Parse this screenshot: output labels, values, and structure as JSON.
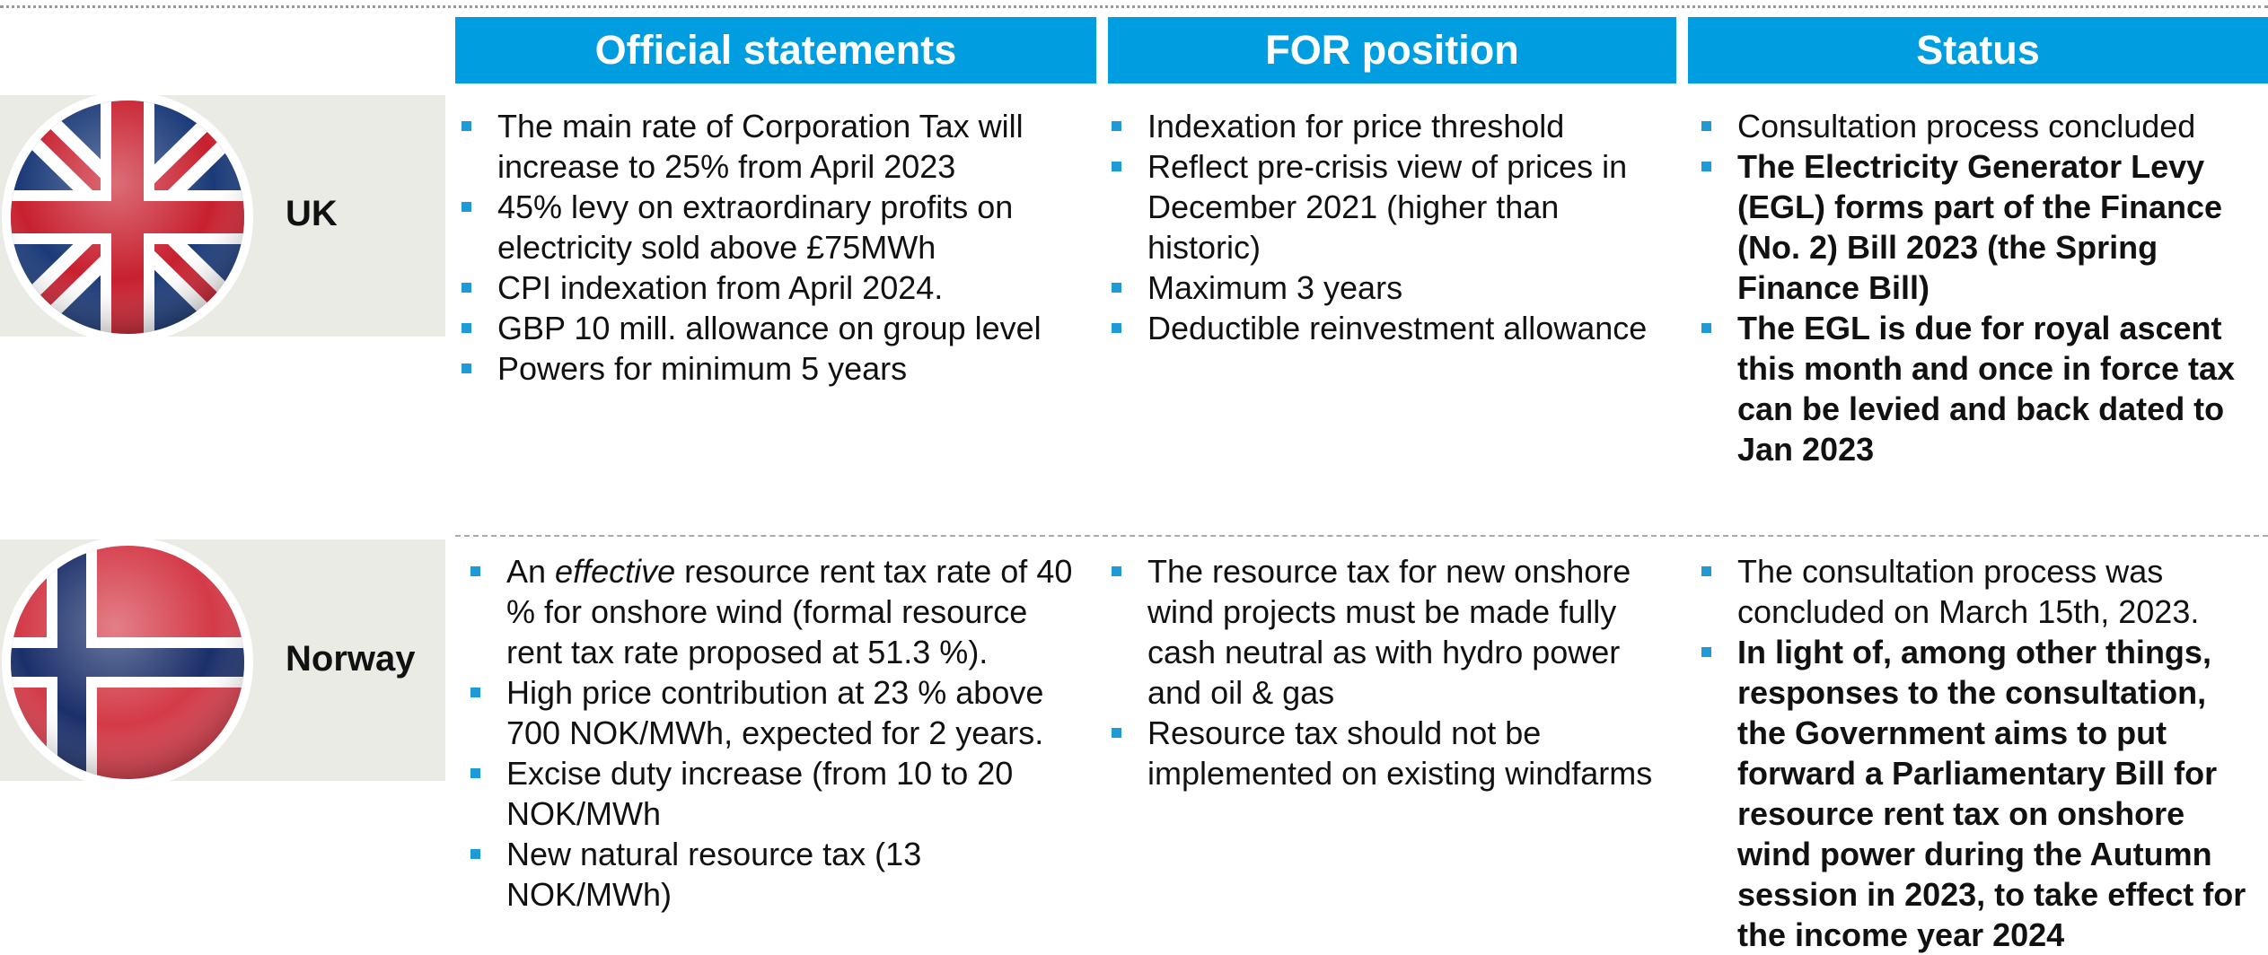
{
  "headers": [
    "Official statements",
    "FOR position",
    "Status"
  ],
  "rows": [
    {
      "country": "UK",
      "official": [
        [
          {
            "text": "The main rate of Corporation Tax will increase to 25% from April 2023"
          }
        ],
        [
          {
            "text": "45% levy on extraordinary profits on electricity sold above £75MWh"
          }
        ],
        [
          {
            "text": "CPI indexation from April 2024."
          }
        ],
        [
          {
            "text": "GBP 10 mill. allowance on group level"
          }
        ],
        [
          {
            "text": "Powers for minimum 5 years"
          }
        ]
      ],
      "for": [
        [
          {
            "text": "Indexation for price threshold"
          }
        ],
        [
          {
            "text": "Reflect pre-crisis view of prices in December 2021 (higher than historic)"
          }
        ],
        [
          {
            "text": "Maximum 3 years"
          }
        ],
        [
          {
            "text": "Deductible reinvestment allowance"
          }
        ]
      ],
      "status": [
        [
          {
            "text": "Consultation process concluded"
          }
        ],
        [
          {
            "text": "The Electricity Generator Levy (EGL) forms part of the Finance (No. 2) Bill 2023 (the Spring Finance Bill)",
            "bold": true
          }
        ],
        [
          {
            "text": "The EGL is due for royal ascent this month and once in force tax can be levied and back dated to Jan 2023",
            "bold": true
          }
        ]
      ]
    },
    {
      "country": "Norway",
      "official": [
        [
          {
            "text": "An "
          },
          {
            "text": "effective",
            "italic": true
          },
          {
            "text": " resource rent tax rate of 40 % for onshore wind (formal resource rent tax rate proposed at 51.3 %)."
          }
        ],
        [
          {
            "text": "High price contribution at 23 % above 700 NOK/MWh, expected for 2 years."
          }
        ],
        [
          {
            "text": "Excise duty increase (from 10 to 20 NOK/MWh"
          }
        ],
        [
          {
            "text": "New natural resource tax (13 NOK/MWh)"
          }
        ]
      ],
      "for": [
        [
          {
            "text": "The resource tax for new onshore wind projects must be made fully cash neutral as with hydro power and oil & gas"
          }
        ],
        [
          {
            "text": "Resource tax should not be implemented on existing windfarms"
          }
        ]
      ],
      "status": [
        [
          {
            "text": "The  consultation process was concluded on March 15th, 2023."
          }
        ],
        [
          {
            "text": "In light of, among other things, responses to the consultation, the Government aims to put forward a Parliamentary Bill for resource rent tax on onshore wind power during the Autumn session in 2023, to take effect for the income year 2024",
            "bold": true
          }
        ]
      ]
    }
  ]
}
